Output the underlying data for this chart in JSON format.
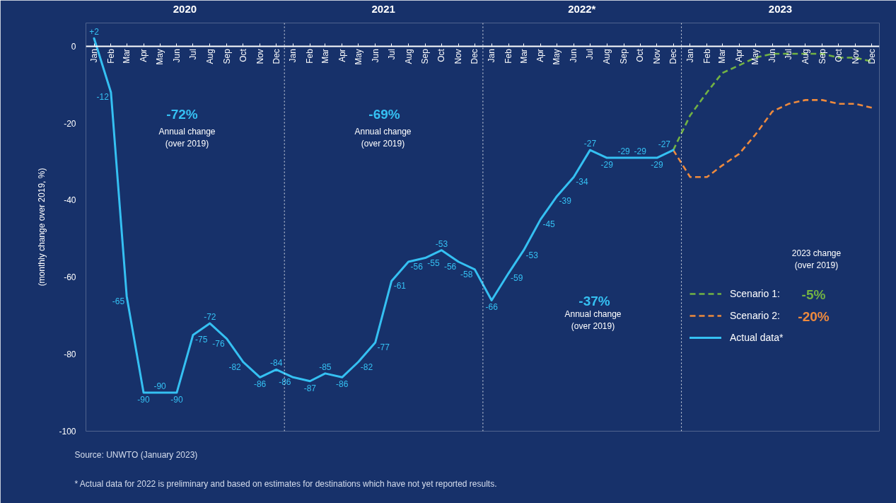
{
  "chart_data": {
    "type": "line",
    "ylabel": "(monthly change over 2019, %)",
    "xlim": [
      "2019-12-17",
      "2023-12-15"
    ],
    "xticks": [
      {
        "value": "2020-01",
        "label": "Jan"
      },
      {
        "value": "2020-02",
        "label": "Feb"
      },
      {
        "value": "2020-03",
        "label": "Mar"
      },
      {
        "value": "2020-04",
        "label": "Apr"
      },
      {
        "value": "2020-05",
        "label": "May"
      },
      {
        "value": "2020-06",
        "label": "Jun"
      },
      {
        "value": "2020-07",
        "label": "Jul"
      },
      {
        "value": "2020-08",
        "label": "Aug"
      },
      {
        "value": "2020-09",
        "label": "Sep"
      },
      {
        "value": "2020-10",
        "label": "Oct"
      },
      {
        "value": "2020-11",
        "label": "Nov"
      },
      {
        "value": "2020-12",
        "label": "Dec"
      },
      {
        "value": "2021-01",
        "label": "Jan"
      },
      {
        "value": "2021-02",
        "label": "Feb"
      },
      {
        "value": "2021-03",
        "label": "Mar"
      },
      {
        "value": "2021-04",
        "label": "Apr"
      },
      {
        "value": "2021-05",
        "label": "May"
      },
      {
        "value": "2021-06",
        "label": "Jun"
      },
      {
        "value": "2021-07",
        "label": "Jul"
      },
      {
        "value": "2021-08",
        "label": "Aug"
      },
      {
        "value": "2021-09",
        "label": "Sep"
      },
      {
        "value": "2021-10",
        "label": "Oct"
      },
      {
        "value": "2021-11",
        "label": "Nov"
      },
      {
        "value": "2021-12",
        "label": "Dec"
      },
      {
        "value": "2022-01",
        "label": "Jan"
      },
      {
        "value": "2022-02",
        "label": "Feb"
      },
      {
        "value": "2022-03",
        "label": "Mar"
      },
      {
        "value": "2022-04",
        "label": "Apr"
      },
      {
        "value": "2022-05",
        "label": "May"
      },
      {
        "value": "2022-06",
        "label": "Jun"
      },
      {
        "value": "2022-07",
        "label": "Jul"
      },
      {
        "value": "2022-08",
        "label": "Aug"
      },
      {
        "value": "2022-09",
        "label": "Sep"
      },
      {
        "value": "2022-10",
        "label": "Oct"
      },
      {
        "value": "2022-11",
        "label": "Nov"
      },
      {
        "value": "2022-12",
        "label": "Dec"
      },
      {
        "value": "2023-01",
        "label": "Jan"
      },
      {
        "value": "2023-02",
        "label": "Feb"
      },
      {
        "value": "2023-03",
        "label": "Mar"
      },
      {
        "value": "2023-04",
        "label": "Apr"
      },
      {
        "value": "2023-05",
        "label": "May"
      },
      {
        "value": "2023-06",
        "label": "Jun"
      },
      {
        "value": "2023-07",
        "label": "Jul"
      },
      {
        "value": "2023-08",
        "label": "Aug"
      },
      {
        "value": "2023-09",
        "label": "Sep"
      },
      {
        "value": "2023-10",
        "label": "Oct"
      },
      {
        "value": "2023-11",
        "label": "Nov"
      },
      {
        "value": "2023-12",
        "label": "Dec"
      }
    ],
    "x2lim": [
      "2019-12-17",
      "2023-12-15"
    ],
    "x2ticks": [
      {
        "value": "2020-06-16",
        "label": "2020"
      },
      {
        "value": "2021-06-16",
        "label": "2021"
      },
      {
        "value": "2022-06-16",
        "label": "2022*"
      },
      {
        "value": "2023-06-16",
        "label": "2023"
      }
    ],
    "ylim": [
      -100,
      6
    ],
    "yticks": [
      0,
      -20,
      -40,
      -60,
      -80,
      -100
    ],
    "ref_lines": [
      {
        "axis": "x",
        "value": "2020-12-16",
        "color": "#ffffff",
        "line_style": "dotted"
      },
      {
        "axis": "x",
        "value": "2021-12-16",
        "color": "#ffffff",
        "line_style": "dotted"
      },
      {
        "axis": "x",
        "value": "2022-12-16",
        "color": "#ffffff",
        "line_style": "dotted"
      }
    ],
    "series": [
      {
        "name": "Scenario 1:",
        "color": "#72b244",
        "line_style": "dashed",
        "x": [
          "2022-12",
          "2023-01",
          "2023-02",
          "2023-03",
          "2023-04",
          "2023-05",
          "2023-06",
          "2023-07",
          "2023-08",
          "2023-09",
          "2023-10",
          "2023-11",
          "2023-12"
        ],
        "values": [
          -27,
          -18,
          -12,
          -7,
          -5,
          -3,
          -2,
          -2,
          -2,
          -2,
          -3,
          -3,
          -4
        ]
      },
      {
        "name": "Scenario 2:",
        "color": "#ee8a3d",
        "line_style": "dashed",
        "x": [
          "2022-12",
          "2023-01",
          "2023-02",
          "2023-03",
          "2023-04",
          "2023-05",
          "2023-06",
          "2023-07",
          "2023-08",
          "2023-09",
          "2023-10",
          "2023-11",
          "2023-12"
        ],
        "values": [
          -27,
          -34,
          -34,
          -31,
          -28,
          -23,
          -17,
          -15,
          -14,
          -14,
          -15,
          -15,
          -16
        ]
      },
      {
        "name": "Actual data*",
        "color": "#35c0f2",
        "line_style": "solid",
        "x": [
          "2020-01",
          "2020-02",
          "2020-03",
          "2020-04",
          "2020-05",
          "2020-06",
          "2020-07",
          "2020-08",
          "2020-09",
          "2020-10",
          "2020-11",
          "2020-12",
          "2021-01",
          "2021-02",
          "2021-03",
          "2021-04",
          "2021-05",
          "2021-06",
          "2021-07",
          "2021-08",
          "2021-09",
          "2021-10",
          "2021-11",
          "2021-12",
          "2022-01",
          "2022-02",
          "2022-03",
          "2022-04",
          "2022-05",
          "2022-06",
          "2022-07",
          "2022-08",
          "2022-09",
          "2022-10",
          "2022-11",
          "2022-12"
        ],
        "values": [
          2,
          -12,
          -65,
          -90,
          -90,
          -90,
          -75,
          -72,
          -76,
          -82,
          -86,
          -84,
          -86,
          -87,
          -85,
          -86,
          -82,
          -77,
          -61,
          -56,
          -55,
          -53,
          -56,
          -58,
          -66,
          -59,
          -53,
          -45,
          -39,
          -34,
          -27,
          -29,
          -29,
          -29,
          -29,
          -27
        ],
        "value_labels": [
          "+2",
          "-12",
          "-65",
          "-90",
          "-90",
          "-90",
          "-75",
          "-72",
          "-76",
          "-82",
          "-86",
          "-84",
          "-86",
          "-87",
          "-85",
          "-86",
          "-82",
          "-77",
          "-61",
          "-56",
          "-55",
          "-53",
          "-56",
          "-58",
          "-66",
          "-59",
          "-53",
          "-45",
          "-39",
          "-34",
          "-27",
          "-29",
          "-29",
          "-29",
          "-29",
          "-27"
        ]
      }
    ],
    "legend": "right",
    "legend_title": "2023 change\n(over 2019)",
    "annotations": [
      "-72%",
      "Annual change\n(over 2019)",
      "-69%",
      "Annual change\n(over 2019)",
      "-37%",
      "Annual change\n(over 2019)",
      "-5%",
      "-20%",
      "Source: UNWTO (January 2023)",
      "* Actual data for 2022 is preliminary and based on estimates for destinations which have not yet reported results."
    ]
  }
}
